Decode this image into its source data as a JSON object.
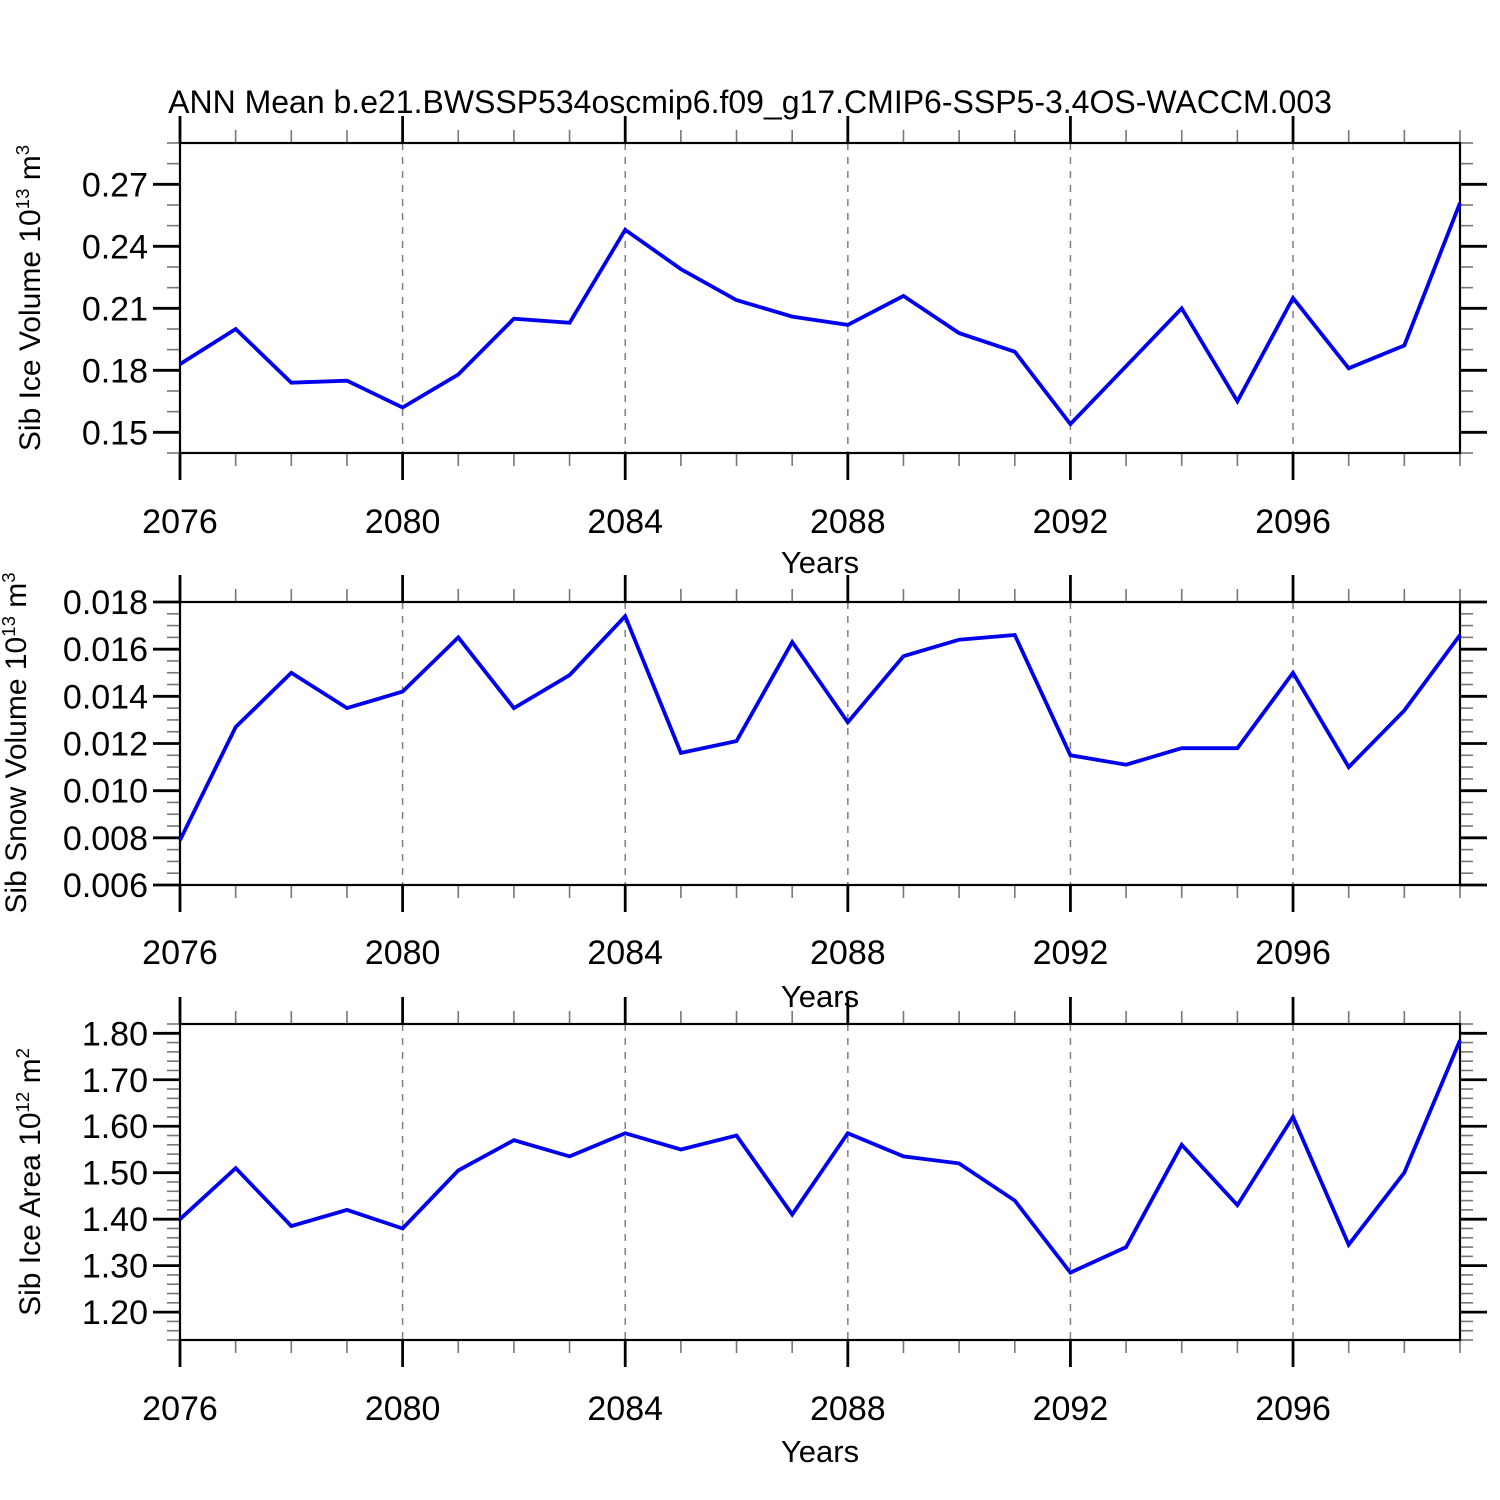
{
  "title": "ANN Mean b.e21.BWSSP534oscmip6.f09_g17.CMIP6-SSP5-3.4OS-WACCM.003",
  "colors": {
    "line": "#0000ee",
    "axis": "#000000",
    "minor_tick": "#777777",
    "grid": "#808080",
    "background": "#ffffff",
    "text": "#000000"
  },
  "x_axis": {
    "label": "Years",
    "range": [
      2076,
      2099
    ],
    "major_ticks": [
      2076,
      2080,
      2084,
      2088,
      2092,
      2096
    ],
    "major_tick_labels": [
      "2076",
      "2080",
      "2084",
      "2088",
      "2092",
      "2096"
    ],
    "minor_step": 1,
    "grid_years": [
      2080,
      2084,
      2088,
      2092,
      2096
    ]
  },
  "chart_data": [
    {
      "type": "line",
      "name": "sib-ice-volume",
      "ylabel": "Sib Ice Volume 10^13 m^3",
      "ylabel_parts": {
        "base": "Sib Ice Volume 10",
        "exp": "13",
        "unit": " m",
        "unit_exp": "3"
      },
      "xlabel": "Years",
      "ylim": [
        0.14,
        0.29
      ],
      "yticks": [
        0.15,
        0.18,
        0.21,
        0.24,
        0.27
      ],
      "ytick_labels": [
        "0.15",
        "0.18",
        "0.21",
        "0.24",
        "0.27"
      ],
      "yminor_step": 0.01,
      "x": [
        2076,
        2077,
        2078,
        2079,
        2080,
        2081,
        2082,
        2083,
        2084,
        2085,
        2086,
        2087,
        2088,
        2089,
        2090,
        2091,
        2092,
        2093,
        2094,
        2095,
        2096,
        2097,
        2098,
        2099
      ],
      "values": [
        0.183,
        0.2,
        0.174,
        0.175,
        0.162,
        0.178,
        0.205,
        0.203,
        0.248,
        0.229,
        0.214,
        0.206,
        0.202,
        0.216,
        0.198,
        0.189,
        0.154,
        0.182,
        0.21,
        0.165,
        0.215,
        0.181,
        0.192,
        0.261
      ]
    },
    {
      "type": "line",
      "name": "sib-snow-volume",
      "ylabel": "Sib Snow Volume 10^13 m^3",
      "ylabel_parts": {
        "base": "Sib Snow Volume 10",
        "exp": "13",
        "unit": " m",
        "unit_exp": "3"
      },
      "xlabel": "Years",
      "ylim": [
        0.006,
        0.018
      ],
      "yticks": [
        0.006,
        0.008,
        0.01,
        0.012,
        0.014,
        0.016,
        0.018
      ],
      "ytick_labels": [
        "0.006",
        "0.008",
        "0.010",
        "0.012",
        "0.014",
        "0.016",
        "0.018"
      ],
      "yminor_step": 0.0005,
      "x": [
        2076,
        2077,
        2078,
        2079,
        2080,
        2081,
        2082,
        2083,
        2084,
        2085,
        2086,
        2087,
        2088,
        2089,
        2090,
        2091,
        2092,
        2093,
        2094,
        2095,
        2096,
        2097,
        2098,
        2099
      ],
      "values": [
        0.0079,
        0.0127,
        0.015,
        0.0135,
        0.0142,
        0.0165,
        0.0135,
        0.0149,
        0.0174,
        0.0116,
        0.0121,
        0.0163,
        0.0129,
        0.0157,
        0.0164,
        0.0166,
        0.0115,
        0.0111,
        0.0118,
        0.0118,
        0.015,
        0.011,
        0.0134,
        0.0166
      ]
    },
    {
      "type": "line",
      "name": "sib-ice-area",
      "ylabel": "Sib Ice Area 10^12 m^2",
      "ylabel_parts": {
        "base": "Sib Ice Area 10",
        "exp": "12",
        "unit": " m",
        "unit_exp": "2"
      },
      "xlabel": "Years",
      "ylim": [
        1.14,
        1.82
      ],
      "yticks": [
        1.2,
        1.3,
        1.4,
        1.5,
        1.6,
        1.7,
        1.8
      ],
      "ytick_labels": [
        "1.20",
        "1.30",
        "1.40",
        "1.50",
        "1.60",
        "1.70",
        "1.80"
      ],
      "yminor_step": 0.02,
      "x": [
        2076,
        2077,
        2078,
        2079,
        2080,
        2081,
        2082,
        2083,
        2084,
        2085,
        2086,
        2087,
        2088,
        2089,
        2090,
        2091,
        2092,
        2093,
        2094,
        2095,
        2096,
        2097,
        2098,
        2099
      ],
      "values": [
        1.4,
        1.51,
        1.385,
        1.42,
        1.38,
        1.505,
        1.57,
        1.535,
        1.585,
        1.55,
        1.58,
        1.41,
        1.585,
        1.535,
        1.52,
        1.44,
        1.285,
        1.34,
        1.56,
        1.43,
        1.62,
        1.345,
        1.5,
        1.785
      ]
    }
  ]
}
